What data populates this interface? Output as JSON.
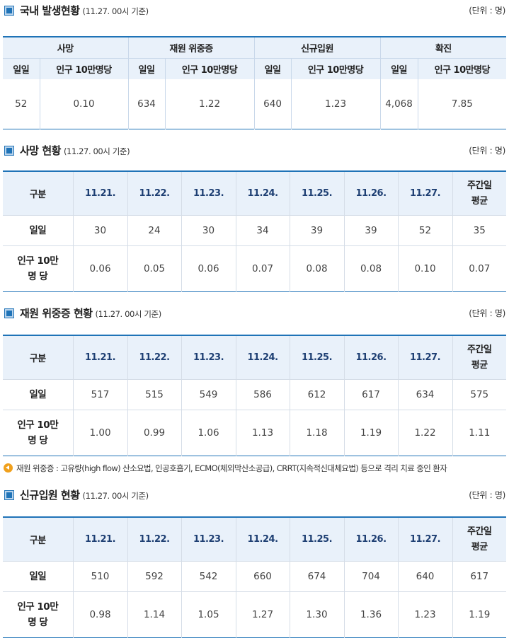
{
  "summary": {
    "title": "국내 발생현황",
    "sub": "(11.27. 00시 기준)",
    "unit": "(단위 : 명)",
    "groups": [
      "사망",
      "재원 위중증",
      "신규입원",
      "확진"
    ],
    "col_daily": "일일",
    "col_per": "인구 10만명당",
    "values": [
      {
        "daily": "52",
        "per": "0.10"
      },
      {
        "daily": "634",
        "per": "1.22"
      },
      {
        "daily": "640",
        "per": "1.23"
      },
      {
        "daily": "4,068",
        "per": "7.85"
      }
    ]
  },
  "weekly_common": {
    "col_label": "구분",
    "dates": [
      "11.21.",
      "11.22.",
      "11.23.",
      "11.24.",
      "11.25.",
      "11.26.",
      "11.27."
    ],
    "avg_label_1": "주간일",
    "avg_label_2": "평균",
    "row_daily": "일일",
    "row_per_1": "인구 10만",
    "row_per_2": "명 당"
  },
  "deaths": {
    "title": "사망 현황",
    "sub": "(11.27. 00시 기준)",
    "unit": "(단위 : 명)",
    "daily": [
      "30",
      "24",
      "30",
      "34",
      "39",
      "39",
      "52",
      "35"
    ],
    "per": [
      "0.06",
      "0.05",
      "0.06",
      "0.07",
      "0.08",
      "0.08",
      "0.10",
      "0.07"
    ]
  },
  "critical": {
    "title": "재원 위중증 현황",
    "sub": "(11.27. 00시 기준)",
    "unit": "(단위 : 명)",
    "daily": [
      "517",
      "515",
      "549",
      "586",
      "612",
      "617",
      "634",
      "575"
    ],
    "per": [
      "1.00",
      "0.99",
      "1.06",
      "1.13",
      "1.18",
      "1.19",
      "1.22",
      "1.11"
    ]
  },
  "note": "재원 위중증 : 고유량(high flow) 산소요법, 인공호흡기, ECMO(체외막산소공급), CRRT(지속적신대체요법) 등으로 격리 치료 중인 환자",
  "admissions": {
    "title": "신규입원 현황",
    "sub": "(11.27. 00시 기준)",
    "unit": "(단위 : 명)",
    "daily": [
      "510",
      "592",
      "542",
      "660",
      "674",
      "704",
      "640",
      "617"
    ],
    "per": [
      "0.98",
      "1.14",
      "1.05",
      "1.27",
      "1.30",
      "1.36",
      "1.23",
      "1.19"
    ]
  }
}
